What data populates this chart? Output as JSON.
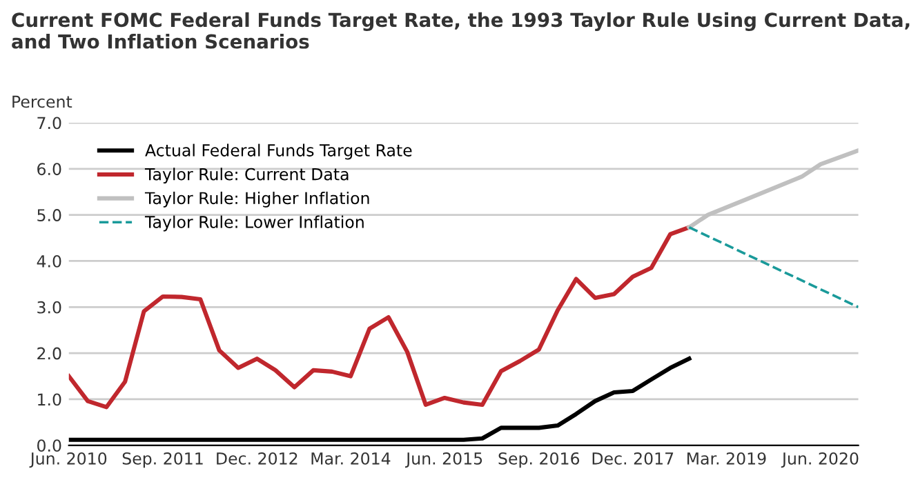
{
  "chart_data": {
    "type": "line",
    "title": "Current FOMC Federal Funds Target Rate, the 1993 Taylor Rule Using Current Data,\nand Two Inflation Scenarios",
    "ylabel": "Percent",
    "x": [
      "2010-06",
      "2010-09",
      "2010-12",
      "2011-03",
      "2011-06",
      "2011-09",
      "2011-12",
      "2012-03",
      "2012-06",
      "2012-09",
      "2012-12",
      "2013-03",
      "2013-06",
      "2013-09",
      "2013-12",
      "2014-03",
      "2014-06",
      "2014-09",
      "2014-12",
      "2015-03",
      "2015-06",
      "2015-09",
      "2015-12",
      "2016-03",
      "2016-06",
      "2016-09",
      "2016-12",
      "2017-03",
      "2017-06",
      "2017-09",
      "2017-12",
      "2018-03",
      "2018-06",
      "2018-09"
    ],
    "series": [
      {
        "name": "Actual Federal Funds Target Rate",
        "color": "#000000",
        "line_style": "solid",
        "values": [
          0.12,
          0.12,
          0.12,
          0.12,
          0.12,
          0.12,
          0.12,
          0.12,
          0.12,
          0.12,
          0.12,
          0.12,
          0.12,
          0.12,
          0.12,
          0.12,
          0.12,
          0.12,
          0.12,
          0.12,
          0.12,
          0.12,
          0.15,
          0.38,
          0.38,
          0.38,
          0.43,
          0.68,
          0.96,
          1.15,
          1.18,
          1.43,
          1.68,
          1.88
        ]
      },
      {
        "name": "Taylor Rule: Current Data",
        "color": "#c0272d",
        "line_style": "solid",
        "values": [
          1.5,
          0.96,
          0.83,
          1.38,
          2.91,
          3.23,
          3.22,
          3.17,
          2.06,
          1.68,
          1.88,
          1.63,
          1.26,
          1.63,
          1.6,
          1.5,
          2.53,
          2.78,
          2.03,
          0.88,
          1.03,
          0.93,
          0.88,
          1.61,
          1.83,
          2.08,
          2.93,
          3.61,
          3.2,
          3.28,
          3.66,
          3.85,
          4.58,
          4.73
        ]
      },
      {
        "name": "Taylor Rule: Higher Inflation",
        "color": "#c0c0c0",
        "line_style": "solid",
        "x": [
          "2018-09",
          "2018-12",
          "2019-06",
          "2020-03",
          "2020-06",
          "2020-12"
        ],
        "values": [
          4.73,
          5.0,
          5.33,
          5.83,
          6.1,
          6.4
        ]
      },
      {
        "name": "Taylor Rule: Lower Inflation",
        "color": "#1a9a9a",
        "line_style": "dashed",
        "x": [
          "2018-09",
          "2020-12"
        ],
        "values": [
          4.73,
          3.0
        ]
      }
    ],
    "xlim": [
      "2010-06",
      "2020-12"
    ],
    "xticks": [
      {
        "value": "2010-06",
        "label": "Jun. 2010"
      },
      {
        "value": "2011-09",
        "label": "Sep. 2011"
      },
      {
        "value": "2012-12",
        "label": "Dec. 2012"
      },
      {
        "value": "2014-03",
        "label": "Mar. 2014"
      },
      {
        "value": "2015-06",
        "label": "Jun. 2015"
      },
      {
        "value": "2016-09",
        "label": "Sep. 2016"
      },
      {
        "value": "2017-12",
        "label": "Dec. 2017"
      },
      {
        "value": "2019-03",
        "label": "Mar. 2019"
      },
      {
        "value": "2020-06",
        "label": "Jun. 2020"
      }
    ],
    "ylim": [
      0,
      7
    ],
    "yticks": [
      {
        "value": 0,
        "label": "0.0"
      },
      {
        "value": 1,
        "label": "1.0"
      },
      {
        "value": 2,
        "label": "2.0"
      },
      {
        "value": 3,
        "label": "3.0"
      },
      {
        "value": 4,
        "label": "4.0"
      },
      {
        "value": 5,
        "label": "5.0"
      },
      {
        "value": 6,
        "label": "6.0"
      },
      {
        "value": 7,
        "label": "7.0"
      }
    ],
    "grid": "y",
    "legend": "top left",
    "marker": "none"
  }
}
